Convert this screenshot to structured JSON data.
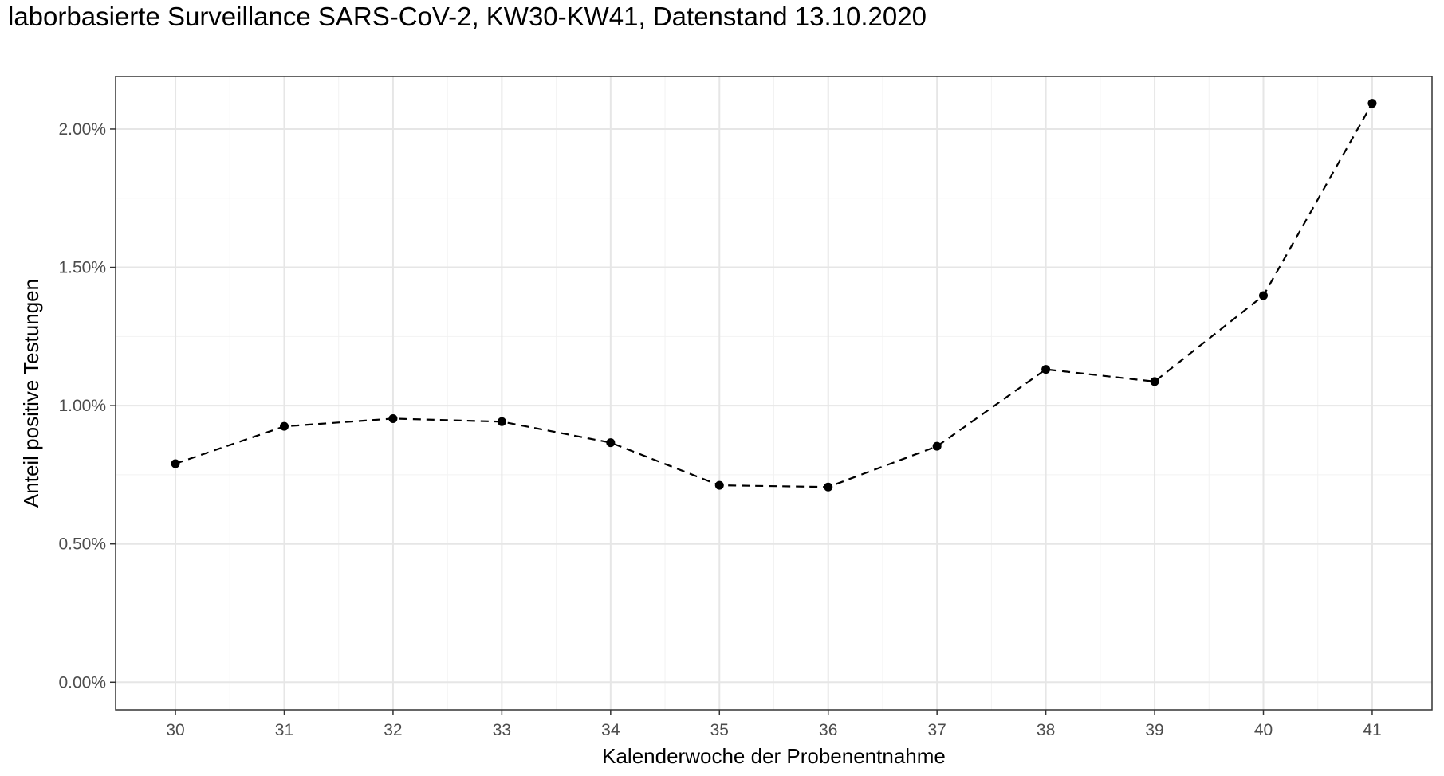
{
  "title": "laborbasierte Surveillance SARS-CoV-2, KW30-KW41, Datenstand 13.10.2020",
  "chart_data": {
    "type": "line",
    "title": "laborbasierte Surveillance SARS-CoV-2, KW30-KW41, Datenstand 13.10.2020",
    "xlabel": "Kalenderwoche der Probenentnahme",
    "ylabel": "Anteil positive Testungen",
    "x": [
      30,
      31,
      32,
      33,
      34,
      35,
      36,
      37,
      38,
      39,
      40,
      41
    ],
    "x_tick_labels": [
      "30",
      "31",
      "32",
      "33",
      "34",
      "35",
      "36",
      "37",
      "38",
      "39",
      "40",
      "41"
    ],
    "y_ticks": [
      0,
      0.5,
      1.0,
      1.5,
      2.0
    ],
    "y_tick_labels": [
      "0.00%",
      "0.50%",
      "1.00%",
      "1.50%",
      "2.00%"
    ],
    "xlim": [
      29.45,
      41.55
    ],
    "ylim": [
      -0.1,
      2.19
    ],
    "series": [
      {
        "values": [
          0.79,
          0.925,
          0.953,
          0.942,
          0.866,
          0.712,
          0.706,
          0.853,
          1.131,
          1.087,
          1.398,
          2.093
        ],
        "line_style": "dashed",
        "marker": "circle",
        "color": "#000000"
      }
    ],
    "grid": true,
    "legend": "none"
  }
}
